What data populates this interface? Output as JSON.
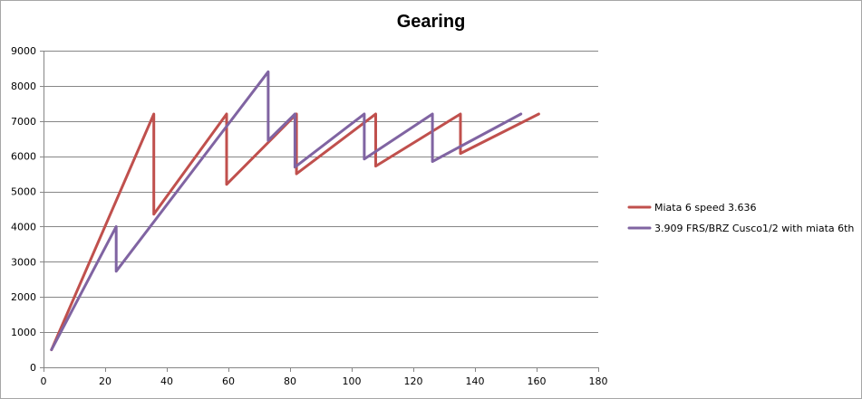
{
  "chart_data": {
    "type": "line",
    "title": "Gearing",
    "xlabel": "",
    "ylabel": "",
    "xlim": [
      0,
      180
    ],
    "ylim": [
      0,
      9000
    ],
    "xticks": [
      0,
      20,
      40,
      60,
      80,
      100,
      120,
      140,
      160,
      180
    ],
    "yticks": [
      0,
      1000,
      2000,
      3000,
      4000,
      5000,
      6000,
      7000,
      8000,
      9000
    ],
    "grid": "horizontal",
    "legend_position": "right",
    "series": [
      {
        "name": "Miata 6 speed 3.636",
        "color": "#c0504d",
        "points": [
          [
            2.6,
            500
          ],
          [
            35.8,
            7200
          ],
          [
            35.8,
            4350
          ],
          [
            59.4,
            7200
          ],
          [
            59.4,
            5200
          ],
          [
            82.1,
            7200
          ],
          [
            82.1,
            5500
          ],
          [
            107.8,
            7200
          ],
          [
            107.8,
            5720
          ],
          [
            135.3,
            7200
          ],
          [
            135.3,
            6080
          ],
          [
            160.7,
            7200
          ]
        ]
      },
      {
        "name": "3.909 FRS/BRZ Cusco1/2 with miata 6th",
        "color": "#8064a2",
        "points": [
          [
            2.6,
            500
          ],
          [
            23.6,
            4000
          ],
          [
            23.6,
            2730
          ],
          [
            72.9,
            8400
          ],
          [
            72.9,
            6450
          ],
          [
            81.6,
            7200
          ],
          [
            81.6,
            5690
          ],
          [
            104.1,
            7200
          ],
          [
            104.1,
            5920
          ],
          [
            126.2,
            7200
          ],
          [
            126.2,
            5850
          ],
          [
            154.9,
            7200
          ]
        ]
      }
    ]
  }
}
